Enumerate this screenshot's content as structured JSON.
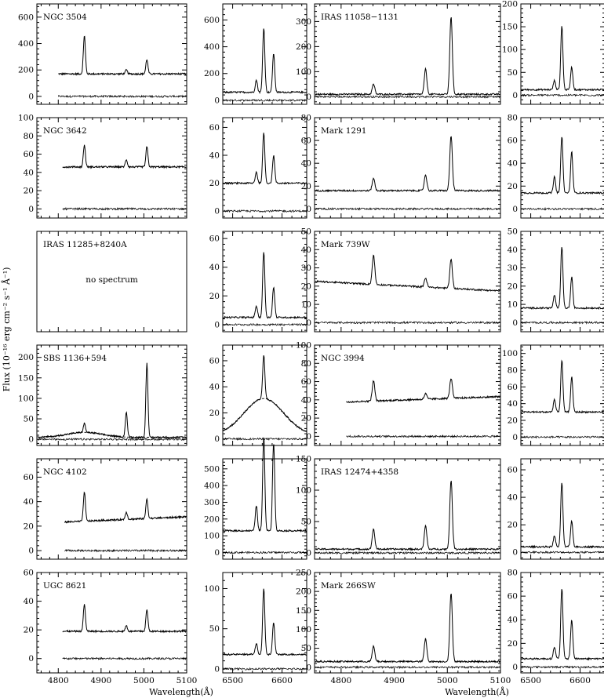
{
  "chart_data": {
    "type": "line",
    "xlabel": "Wavelength(Å)",
    "ylabel": "Flux (10⁻¹⁶ erg cm⁻² s⁻¹ Å⁻¹)",
    "blue_xlim": [
      4750,
      5100
    ],
    "blue_xticks": [
      4800,
      4900,
      5000,
      5100
    ],
    "red_xlim": [
      6480,
      6650
    ],
    "red_xticks": [
      6500,
      6600
    ],
    "grid": false,
    "note_text": "no spectrum",
    "panels": [
      {
        "id": "NGC 3504",
        "blue": {
          "ylim": [
            -60,
            700
          ],
          "yticks": [
            0,
            200,
            400,
            600
          ],
          "continuum": 170,
          "xstart": 4800,
          "lines": [
            [
              4861,
              290
            ],
            [
              4959,
              30
            ],
            [
              5007,
              110
            ]
          ]
        },
        "red": {
          "ylim": [
            -30,
            720
          ],
          "yticks": [
            0,
            200,
            400,
            600
          ],
          "continuum": 60,
          "lines": [
            [
              6548,
              90
            ],
            [
              6563,
              480
            ],
            [
              6583,
              290
            ]
          ]
        }
      },
      {
        "id": "IRAS 11058−1131",
        "blue": {
          "ylim": [
            -30,
            370
          ],
          "yticks": [
            0,
            100,
            200,
            300
          ],
          "continuum": 10,
          "lines": [
            [
              4861,
              40
            ],
            [
              4959,
              100
            ],
            [
              5007,
              310
            ]
          ]
        },
        "red": {
          "ylim": [
            -20,
            200
          ],
          "yticks": [
            0,
            50,
            100,
            150,
            200
          ],
          "continuum": 12,
          "lines": [
            [
              6548,
              20
            ],
            [
              6563,
              140
            ],
            [
              6583,
              50
            ]
          ]
        }
      },
      {
        "id": "NGC 3642",
        "blue": {
          "ylim": [
            -10,
            100
          ],
          "yticks": [
            0,
            20,
            40,
            60,
            80,
            100
          ],
          "continuum": 46,
          "xstart": 4810,
          "lines": [
            [
              4861,
              24
            ],
            [
              4959,
              8
            ],
            [
              5007,
              22
            ]
          ]
        },
        "red": {
          "ylim": [
            -5,
            67
          ],
          "yticks": [
            0,
            20,
            40,
            60
          ],
          "continuum": 20,
          "lines": [
            [
              6548,
              8
            ],
            [
              6563,
              36
            ],
            [
              6583,
              20
            ]
          ]
        }
      },
      {
        "id": "Mark 1291",
        "blue": {
          "ylim": [
            -8,
            80
          ],
          "yticks": [
            0,
            20,
            40,
            60,
            80
          ],
          "continuum": 16,
          "lines": [
            [
              4861,
              11
            ],
            [
              4959,
              14
            ],
            [
              5007,
              48
            ]
          ]
        },
        "red": {
          "ylim": [
            -8,
            80
          ],
          "yticks": [
            0,
            20,
            40,
            60,
            80
          ],
          "continuum": 14,
          "lines": [
            [
              6548,
              14
            ],
            [
              6563,
              50
            ],
            [
              6583,
              36
            ]
          ]
        }
      },
      {
        "id": "IRAS 11285+8240A",
        "blue": null,
        "red": {
          "ylim": [
            -5,
            65
          ],
          "yticks": [
            0,
            20,
            40,
            60
          ],
          "continuum": 5,
          "lines": [
            [
              6548,
              8
            ],
            [
              6563,
              46
            ],
            [
              6583,
              21
            ]
          ]
        }
      },
      {
        "id": "Mark 739W",
        "blue": {
          "ylim": [
            -5,
            50
          ],
          "yticks": [
            0,
            10,
            20,
            30,
            40,
            50
          ],
          "continuum": 20,
          "slope": -1.5,
          "lines": [
            [
              4861,
              16
            ],
            [
              4959,
              5
            ],
            [
              5007,
              16
            ]
          ]
        },
        "red": {
          "ylim": [
            -5,
            50
          ],
          "yticks": [
            0,
            10,
            20,
            30,
            40,
            50
          ],
          "continuum": 8,
          "lines": [
            [
              6548,
              7
            ],
            [
              6563,
              34
            ],
            [
              6583,
              17
            ]
          ]
        }
      },
      {
        "id": "SBS 1136+594",
        "blue": {
          "ylim": [
            -15,
            230
          ],
          "yticks": [
            0,
            50,
            100,
            150,
            200
          ],
          "continuum": 5,
          "lines": [
            [
              4861,
              22
            ],
            [
              4959,
              60
            ],
            [
              5007,
              180
            ]
          ],
          "broad": [
            [
              4861,
              12,
              40
            ]
          ]
        },
        "red": {
          "ylim": [
            -5,
            72
          ],
          "yticks": [
            0,
            20,
            40,
            60
          ],
          "continuum": 3,
          "lines": [
            [
              6563,
              33
            ]
          ],
          "broad": [
            [
              6563,
              28,
              40
            ]
          ]
        }
      },
      {
        "id": "NGC 3994",
        "blue": {
          "ylim": [
            -10,
            100
          ],
          "yticks": [
            0,
            20,
            40,
            60,
            80,
            100
          ],
          "continuum": 40,
          "xstart": 4810,
          "slope": 2,
          "lines": [
            [
              4861,
              22
            ],
            [
              4959,
              6
            ],
            [
              5007,
              22
            ]
          ]
        },
        "red": {
          "ylim": [
            -10,
            110
          ],
          "yticks": [
            0,
            20,
            40,
            60,
            80,
            100
          ],
          "continuum": 30,
          "lines": [
            [
              6548,
              15
            ],
            [
              6563,
              62
            ],
            [
              6583,
              42
            ]
          ]
        }
      },
      {
        "id": "NGC 4102",
        "blue": {
          "ylim": [
            -7,
            75
          ],
          "yticks": [
            0,
            20,
            40,
            60
          ],
          "continuum": 25,
          "xstart": 4815,
          "slope": 1.5,
          "lines": [
            [
              4861,
              24
            ],
            [
              4959,
              6
            ],
            [
              5007,
              16
            ]
          ]
        },
        "red": {
          "ylim": [
            -40,
            560
          ],
          "yticks": [
            0,
            100,
            200,
            300,
            400,
            500
          ],
          "continuum": 130,
          "lines": [
            [
              6548,
              150
            ],
            [
              6563,
              560
            ],
            [
              6583,
              530
            ]
          ]
        }
      },
      {
        "id": "IRAS 12474+4358",
        "blue": {
          "ylim": [
            -10,
            150
          ],
          "yticks": [
            0,
            50,
            100,
            150
          ],
          "continuum": 6,
          "lines": [
            [
              4861,
              32
            ],
            [
              4959,
              37
            ],
            [
              5007,
              110
            ]
          ]
        },
        "red": {
          "ylim": [
            -5,
            68
          ],
          "yticks": [
            0,
            20,
            40,
            60
          ],
          "continuum": 4,
          "lines": [
            [
              6548,
              8
            ],
            [
              6563,
              47
            ],
            [
              6583,
              19
            ]
          ]
        }
      },
      {
        "id": "UGC 8621",
        "blue": {
          "ylim": [
            -10,
            60
          ],
          "yticks": [
            0,
            20,
            40,
            60
          ],
          "continuum": 19,
          "xstart": 4810,
          "lines": [
            [
              4861,
              19
            ],
            [
              4959,
              4
            ],
            [
              5007,
              15
            ]
          ]
        },
        "red": {
          "ylim": [
            -5,
            120
          ],
          "yticks": [
            0,
            50,
            100
          ],
          "continuum": 18,
          "lines": [
            [
              6548,
              14
            ],
            [
              6563,
              82
            ],
            [
              6583,
              40
            ]
          ]
        }
      },
      {
        "id": "Mark 266SW",
        "blue": {
          "ylim": [
            -15,
            250
          ],
          "yticks": [
            0,
            50,
            100,
            150,
            200,
            250
          ],
          "continuum": 15,
          "lines": [
            [
              4861,
              40
            ],
            [
              4959,
              60
            ],
            [
              5007,
              180
            ]
          ]
        },
        "red": {
          "ylim": [
            -5,
            80
          ],
          "yticks": [
            0,
            20,
            40,
            60,
            80
          ],
          "continuum": 7,
          "lines": [
            [
              6548,
              10
            ],
            [
              6563,
              60
            ],
            [
              6583,
              33
            ]
          ]
        }
      }
    ]
  }
}
